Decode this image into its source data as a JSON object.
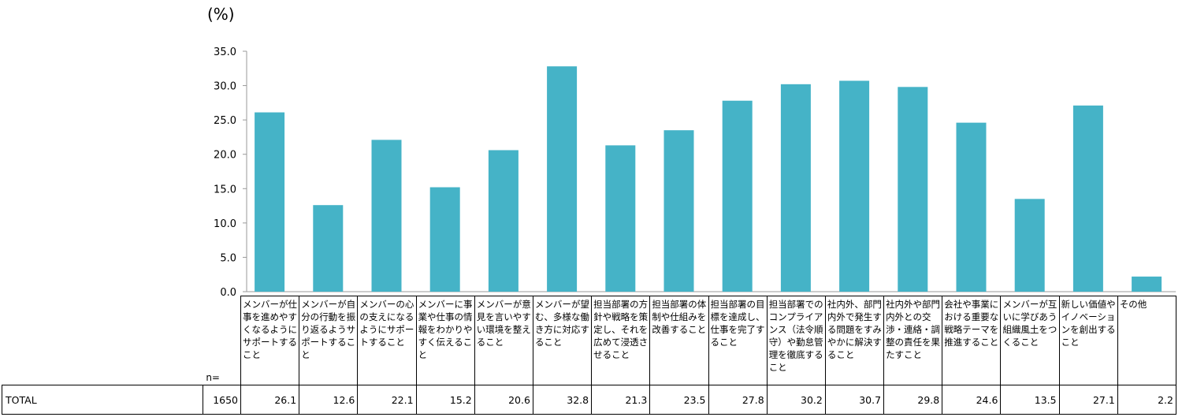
{
  "unit_label": "(%)",
  "colors": {
    "bar": "#45b3c7",
    "axis": "#999999"
  },
  "chart_data": {
    "type": "bar",
    "ylim": [
      0,
      35
    ],
    "yticks": [
      "0.0",
      "5.0",
      "10.0",
      "15.0",
      "20.0",
      "25.0",
      "30.0",
      "35.0"
    ],
    "grid": false,
    "categories": [
      "メンバーが仕事を進めやすくなるようにサポートすること",
      "メンバーが自分の行動を振り返るようサポートすること",
      "メンバーの心の支えになるようにサポートすること",
      "メンバーに事業や仕事の情報をわかりやすく伝えること",
      "メンバーが意見を言いやすい環境を整えること",
      "メンバーが望む、多様な働き方に対応すること",
      "担当部署の方針や戦略を策定し、それを広めて浸透させること",
      "担当部署の体制や仕組みを改善すること",
      "担当部署の目標を達成し、仕事を完了すること",
      "担当部署でのコンプライアンス（法令順守）や勤怠管理を徹底すること",
      "社内外、部門内外で発生する問題をすみやかに解決すること",
      "社内外や部門内外との交渉・連絡・調整の責任を果たすこと",
      "会社や事業における重要な戦略テーマを推進すること",
      "メンバーが互いに学びあう組織風土をつくること",
      "新しい価値やイノベーションを創出すること",
      "その他"
    ],
    "values": [
      26.1,
      12.6,
      22.1,
      15.2,
      20.6,
      32.8,
      21.3,
      23.5,
      27.8,
      30.2,
      30.7,
      29.8,
      24.6,
      13.5,
      27.1,
      2.2
    ]
  },
  "table": {
    "n_header": "n=",
    "row_label": "TOTAL",
    "n_value": "1650",
    "values_text": [
      "26.1",
      "12.6",
      "22.1",
      "15.2",
      "20.6",
      "32.8",
      "21.3",
      "23.5",
      "27.8",
      "30.2",
      "30.7",
      "29.8",
      "24.6",
      "13.5",
      "27.1",
      "2.2"
    ]
  }
}
